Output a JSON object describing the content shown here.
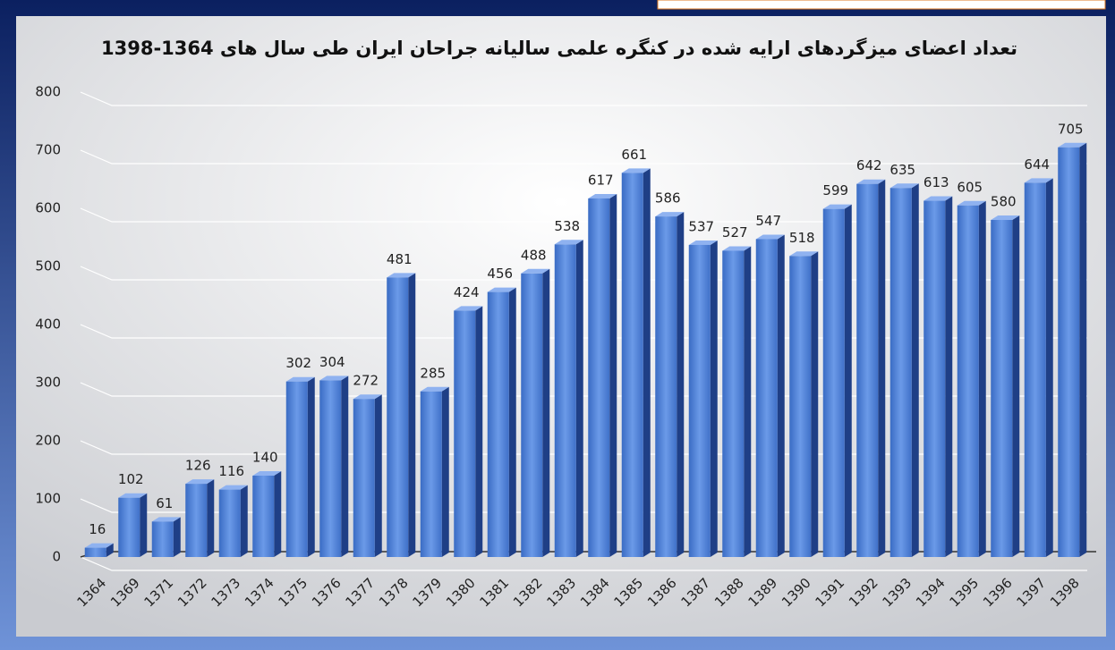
{
  "chart_data": {
    "type": "bar",
    "title": "تعداد اعضای میزگردهای ارایه شده در کنگره علمی سالیانه جراحان ایران طی سال های 1364-1398",
    "categories": [
      "1364",
      "1369",
      "1371",
      "1372",
      "1373",
      "1374",
      "1375",
      "1376",
      "1377",
      "1378",
      "1379",
      "1380",
      "1381",
      "1382",
      "1383",
      "1384",
      "1385",
      "1386",
      "1387",
      "1388",
      "1389",
      "1390",
      "1391",
      "1392",
      "1393",
      "1394",
      "1395",
      "1396",
      "1397",
      "1398"
    ],
    "values": [
      16,
      102,
      61,
      126,
      116,
      140,
      302,
      304,
      272,
      481,
      285,
      424,
      456,
      488,
      538,
      617,
      661,
      586,
      537,
      527,
      547,
      518,
      599,
      642,
      635,
      613,
      605,
      580,
      644,
      705
    ],
    "color": "#4a7fd6",
    "ylim": [
      0,
      800
    ],
    "yticks": [
      0,
      100,
      200,
      300,
      400,
      500,
      600,
      700,
      800
    ],
    "grid": true
  }
}
